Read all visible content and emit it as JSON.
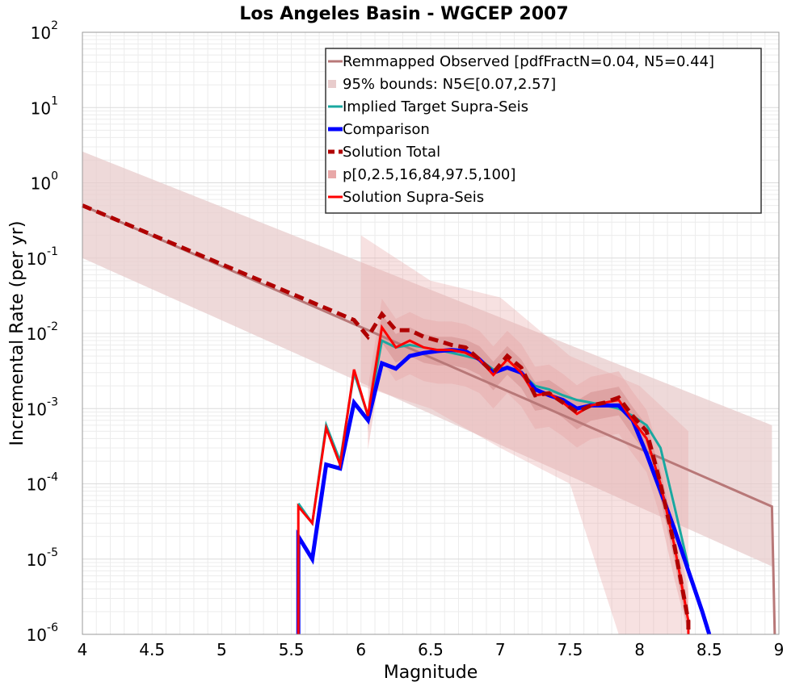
{
  "chart_data": {
    "type": "line",
    "title": "Los Angeles Basin - WGCEP 2007",
    "xlabel": "Magnitude",
    "ylabel": "Incremental Rate (per yr)",
    "xlim": [
      4,
      9
    ],
    "ylim_log10": [
      -6,
      2
    ],
    "yscale": "log",
    "grid": true,
    "legend_position": "top-right",
    "x_ticks": [
      "4",
      "4.5",
      "5",
      "5.5",
      "6",
      "6.5",
      "7",
      "7.5",
      "8",
      "8.5",
      "9"
    ],
    "y_tick_base": "10",
    "y_tick_exponents": [
      "-6",
      "-5",
      "-4",
      "-3",
      "-2",
      "-1",
      "0",
      "1",
      "2"
    ],
    "series": [
      {
        "name": "Remmapped Observed [pdfFractN=0.04, N5=0.44]",
        "style": "solid",
        "color": "#b87878",
        "points": [
          [
            4.0,
            0.5
          ],
          [
            8.95,
            5e-05
          ],
          [
            8.97,
            1e-06
          ]
        ]
      },
      {
        "name": "95% bounds: N5∈[0.07,2.57]",
        "style": "band",
        "color": "#e8cccc",
        "lower": [
          [
            4.0,
            0.1
          ],
          [
            8.95,
            8e-06
          ]
        ],
        "upper": [
          [
            4.0,
            2.6
          ],
          [
            8.95,
            0.0006
          ]
        ]
      },
      {
        "name": "Implied Target Supra-Seis",
        "style": "solid",
        "color": "#1aa8a0",
        "points": [
          [
            5.55,
            5.5e-05
          ],
          [
            5.65,
            3e-05
          ],
          [
            5.75,
            0.0006
          ],
          [
            5.85,
            0.0002
          ],
          [
            5.95,
            0.003
          ],
          [
            6.05,
            0.0008
          ],
          [
            6.15,
            0.008
          ],
          [
            6.25,
            0.0065
          ],
          [
            6.35,
            0.007
          ],
          [
            6.45,
            0.0065
          ],
          [
            6.55,
            0.006
          ],
          [
            6.65,
            0.0055
          ],
          [
            6.75,
            0.005
          ],
          [
            6.85,
            0.0045
          ],
          [
            6.95,
            0.0033
          ],
          [
            7.05,
            0.0035
          ],
          [
            7.15,
            0.003
          ],
          [
            7.25,
            0.002
          ],
          [
            7.35,
            0.0018
          ],
          [
            7.45,
            0.0015
          ],
          [
            7.55,
            0.0013
          ],
          [
            7.65,
            0.0012
          ],
          [
            7.75,
            0.0011
          ],
          [
            7.85,
            0.001
          ],
          [
            7.95,
            0.0008
          ],
          [
            8.05,
            0.0006
          ],
          [
            8.15,
            0.0003
          ],
          [
            8.25,
            5e-05
          ],
          [
            8.35,
            8e-06
          ]
        ]
      },
      {
        "name": "Comparison",
        "style": "solid-thick",
        "color": "#0000ff",
        "points": [
          [
            5.55,
            1e-06
          ],
          [
            5.55,
            2e-05
          ],
          [
            5.65,
            1e-05
          ],
          [
            5.75,
            0.00018
          ],
          [
            5.85,
            0.00016
          ],
          [
            5.95,
            0.0012
          ],
          [
            6.05,
            0.0007
          ],
          [
            6.15,
            0.004
          ],
          [
            6.25,
            0.0034
          ],
          [
            6.35,
            0.005
          ],
          [
            6.45,
            0.0055
          ],
          [
            6.55,
            0.0058
          ],
          [
            6.65,
            0.006
          ],
          [
            6.75,
            0.0058
          ],
          [
            6.85,
            0.0045
          ],
          [
            6.95,
            0.003
          ],
          [
            7.05,
            0.0035
          ],
          [
            7.15,
            0.003
          ],
          [
            7.25,
            0.0018
          ],
          [
            7.35,
            0.0015
          ],
          [
            7.45,
            0.0013
          ],
          [
            7.55,
            0.001
          ],
          [
            7.65,
            0.0011
          ],
          [
            7.75,
            0.0011
          ],
          [
            7.85,
            0.0011
          ],
          [
            7.95,
            0.0007
          ],
          [
            8.05,
            0.00025
          ],
          [
            8.15,
            8e-05
          ],
          [
            8.25,
            2.5e-05
          ],
          [
            8.35,
            7e-06
          ],
          [
            8.45,
            2e-06
          ],
          [
            8.5,
            7e-07
          ]
        ]
      },
      {
        "name": "Solution Total",
        "style": "dashed",
        "color": "#b00000",
        "points": [
          [
            4.0,
            0.5
          ],
          [
            5.95,
            0.015
          ],
          [
            6.05,
            0.009
          ],
          [
            6.15,
            0.018
          ],
          [
            6.25,
            0.011
          ],
          [
            6.35,
            0.011
          ],
          [
            6.45,
            0.009
          ],
          [
            6.55,
            0.008
          ],
          [
            6.65,
            0.007
          ],
          [
            6.75,
            0.0065
          ],
          [
            6.85,
            0.0045
          ],
          [
            6.95,
            0.003
          ],
          [
            7.05,
            0.005
          ],
          [
            7.15,
            0.0035
          ],
          [
            7.25,
            0.0015
          ],
          [
            7.35,
            0.0016
          ],
          [
            7.45,
            0.0012
          ],
          [
            7.55,
            0.0009
          ],
          [
            7.65,
            0.0011
          ],
          [
            7.75,
            0.0012
          ],
          [
            7.85,
            0.0014
          ],
          [
            7.95,
            0.0008
          ],
          [
            8.05,
            0.0005
          ],
          [
            8.15,
            0.0001
          ],
          [
            8.25,
            1.5e-05
          ],
          [
            8.35,
            1.5e-06
          ],
          [
            8.35,
            1e-06
          ]
        ]
      },
      {
        "name": "p[0,2.5,16,84,97.5,100]",
        "style": "band",
        "color": "#e8a8a8",
        "outer_lower": [
          [
            6.0,
            0.002
          ],
          [
            6.5,
            0.001
          ],
          [
            7.0,
            0.0003
          ],
          [
            7.5,
            0.0001
          ],
          [
            7.85,
            1e-06
          ],
          [
            8.35,
            1e-06
          ]
        ],
        "outer_upper": [
          [
            6.0,
            0.2
          ],
          [
            6.5,
            0.05
          ],
          [
            7.0,
            0.03
          ],
          [
            7.5,
            0.005
          ],
          [
            8.0,
            0.002
          ],
          [
            8.35,
            0.0005
          ]
        ]
      },
      {
        "name": "Solution Supra-Seis",
        "style": "solid",
        "color": "#ff0000",
        "points": [
          [
            5.55,
            1e-06
          ],
          [
            5.55,
            5e-05
          ],
          [
            5.65,
            3e-05
          ],
          [
            5.75,
            0.00055
          ],
          [
            5.85,
            0.00018
          ],
          [
            5.95,
            0.0033
          ],
          [
            6.05,
            0.0008
          ],
          [
            6.15,
            0.012
          ],
          [
            6.25,
            0.0065
          ],
          [
            6.35,
            0.008
          ],
          [
            6.45,
            0.0065
          ],
          [
            6.55,
            0.006
          ],
          [
            6.65,
            0.006
          ],
          [
            6.75,
            0.0055
          ],
          [
            6.85,
            0.0045
          ],
          [
            6.95,
            0.0028
          ],
          [
            7.05,
            0.0045
          ],
          [
            7.15,
            0.003
          ],
          [
            7.25,
            0.0015
          ],
          [
            7.35,
            0.0016
          ],
          [
            7.45,
            0.0012
          ],
          [
            7.55,
            0.00085
          ],
          [
            7.65,
            0.0011
          ],
          [
            7.75,
            0.0012
          ],
          [
            7.85,
            0.0013
          ],
          [
            7.95,
            0.0007
          ],
          [
            8.05,
            0.0004
          ],
          [
            8.15,
            0.0001
          ],
          [
            8.25,
            1.5e-05
          ],
          [
            8.35,
            1.5e-06
          ],
          [
            8.35,
            1e-06
          ]
        ]
      }
    ]
  }
}
